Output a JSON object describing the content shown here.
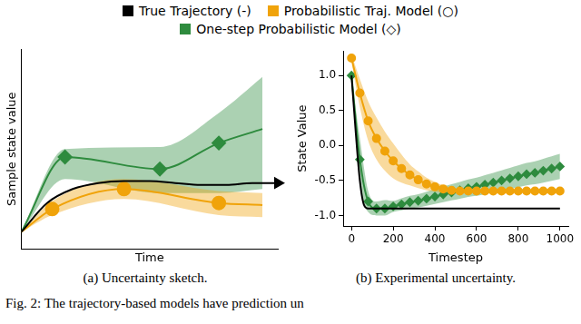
{
  "chart_data": [
    {
      "type": "line",
      "caption": "(a) Uncertainty sketch.",
      "xlabel": "Time",
      "ylabel": "Sample state value",
      "xlim": [
        0,
        10
      ],
      "ylim": [
        0,
        10
      ],
      "tick_labels": false,
      "grid": false,
      "series": [
        {
          "name": "True Trajectory (-)",
          "color": "#000000",
          "marker": "arrow",
          "line_style": "solid",
          "x": [
            0,
            1,
            2,
            3,
            4,
            5,
            6,
            7,
            8,
            9,
            10
          ],
          "values": [
            0.86,
            2.3,
            3.0,
            3.3,
            3.4,
            3.4,
            3.3,
            3.2,
            3.2,
            3.3,
            3.3
          ]
        },
        {
          "name": "Probabilistic Traj. Model (○)",
          "color": "#f0a30a",
          "marker": "circle",
          "line_style": "solid",
          "x": [
            0,
            1.2,
            4,
            7.7,
            9.4
          ],
          "values": [
            0.86,
            2.0,
            3.0,
            2.3,
            2.2
          ],
          "lower": [
            0.86,
            1.7,
            2.5,
            1.7,
            1.6
          ],
          "upper": [
            0.86,
            2.4,
            3.5,
            2.9,
            2.8
          ]
        },
        {
          "name": "One-step Probabilistic Model (◇)",
          "color": "#2e8b3e",
          "marker": "diamond",
          "line_style": "solid",
          "x": [
            0,
            1.7,
            5.4,
            7.7,
            9.4
          ],
          "values": [
            0.86,
            4.6,
            4.0,
            5.3,
            6.0
          ],
          "lower": [
            0.86,
            3.5,
            2.8,
            2.8,
            3.0
          ],
          "upper": [
            0.86,
            5.0,
            5.1,
            6.8,
            8.6
          ]
        }
      ]
    },
    {
      "type": "line",
      "caption": "(b) Experimental uncertainty.",
      "xlabel": "Timestep",
      "ylabel": "State Value",
      "xlim": [
        -40,
        1040
      ],
      "ylim": [
        -1.15,
        1.35
      ],
      "xticks": [
        0,
        200,
        400,
        600,
        800,
        1000
      ],
      "yticks": [
        {
          "value": -1,
          "label": "-1.0"
        },
        {
          "value": -0.5,
          "label": "-0.5"
        },
        {
          "value": 0,
          "label": "0.0"
        },
        {
          "value": 0.5,
          "label": "0.5"
        },
        {
          "value": 1,
          "label": "1.0"
        }
      ],
      "grid": false,
      "legend": "top",
      "series": [
        {
          "name": "True Trajectory (-)",
          "color": "#000000",
          "marker": "none",
          "line_style": "solid",
          "x": [
            0,
            20,
            40,
            60,
            80,
            100,
            200,
            400,
            600,
            800,
            1000
          ],
          "values": [
            1.0,
            0.2,
            -0.5,
            -0.85,
            -0.9,
            -0.9,
            -0.9,
            -0.9,
            -0.9,
            -0.9,
            -0.9
          ]
        },
        {
          "name": "Probabilistic Traj. Model (○)",
          "color": "#f0a30a",
          "marker": "circle",
          "line_style": "solid",
          "x": [
            0,
            40,
            80,
            120,
            160,
            200,
            240,
            280,
            320,
            360,
            400,
            440,
            480,
            520,
            560,
            600,
            640,
            680,
            720,
            760,
            800,
            840,
            880,
            920,
            960,
            1000
          ],
          "values": [
            1.25,
            0.75,
            0.35,
            0.1,
            -0.08,
            -0.22,
            -0.33,
            -0.42,
            -0.49,
            -0.55,
            -0.59,
            -0.62,
            -0.64,
            -0.65,
            -0.65,
            -0.65,
            -0.65,
            -0.65,
            -0.65,
            -0.65,
            -0.65,
            -0.65,
            -0.65,
            -0.65,
            -0.65,
            -0.65
          ],
          "lower": [
            1.2,
            0.55,
            0.07,
            -0.2,
            -0.36,
            -0.47,
            -0.53,
            -0.57,
            -0.61,
            -0.64,
            -0.66,
            -0.67,
            -0.68,
            -0.68,
            -0.68,
            -0.68,
            -0.68,
            -0.68,
            -0.68,
            -0.68,
            -0.68,
            -0.68,
            -0.68,
            -0.68,
            -0.68,
            -0.68
          ],
          "upper": [
            1.3,
            0.95,
            0.63,
            0.4,
            0.2,
            0.03,
            -0.13,
            -0.27,
            -0.37,
            -0.46,
            -0.52,
            -0.57,
            -0.6,
            -0.62,
            -0.62,
            -0.62,
            -0.62,
            -0.62,
            -0.62,
            -0.62,
            -0.62,
            -0.62,
            -0.62,
            -0.62,
            -0.62,
            -0.62
          ]
        },
        {
          "name": "One-step Probabilistic Model (◇)",
          "color": "#2e8b3e",
          "marker": "diamond",
          "line_style": "solid",
          "x": [
            0,
            40,
            80,
            120,
            160,
            200,
            240,
            280,
            320,
            360,
            400,
            440,
            480,
            520,
            560,
            600,
            640,
            680,
            720,
            760,
            800,
            840,
            880,
            920,
            960,
            1000
          ],
          "values": [
            1.0,
            -0.2,
            -0.8,
            -0.9,
            -0.9,
            -0.87,
            -0.84,
            -0.81,
            -0.79,
            -0.76,
            -0.73,
            -0.7,
            -0.67,
            -0.64,
            -0.61,
            -0.59,
            -0.56,
            -0.53,
            -0.5,
            -0.47,
            -0.44,
            -0.41,
            -0.39,
            -0.36,
            -0.33,
            -0.3
          ],
          "lower": [
            1.0,
            -0.5,
            -0.95,
            -1.0,
            -1.0,
            -0.95,
            -0.925,
            -0.9,
            -0.885,
            -0.86,
            -0.835,
            -0.81,
            -0.785,
            -0.76,
            -0.735,
            -0.72,
            -0.695,
            -0.67,
            -0.645,
            -0.62,
            -0.595,
            -0.57,
            -0.555,
            -0.53,
            -0.505,
            -0.48
          ],
          "upper": [
            1.0,
            0.1,
            -0.65,
            -0.8,
            -0.78,
            -0.79,
            -0.755,
            -0.72,
            -0.695,
            -0.66,
            -0.625,
            -0.59,
            -0.555,
            -0.52,
            -0.485,
            -0.46,
            -0.425,
            -0.39,
            -0.355,
            -0.32,
            -0.285,
            -0.25,
            -0.225,
            -0.19,
            -0.155,
            -0.12
          ]
        }
      ]
    }
  ],
  "figure_caption": "Fig. 2: The trajectory-based models have prediction un"
}
